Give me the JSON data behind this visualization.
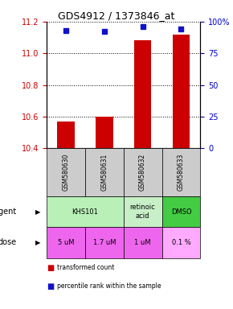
{
  "title": "GDS4912 / 1373846_at",
  "samples": [
    "GSM580630",
    "GSM580631",
    "GSM580632",
    "GSM580633"
  ],
  "bar_values": [
    10.57,
    10.6,
    11.08,
    11.12
  ],
  "percentile_values": [
    93,
    92,
    96,
    94
  ],
  "ylim_left": [
    10.4,
    11.2
  ],
  "ylim_right": [
    0,
    100
  ],
  "yticks_left": [
    10.4,
    10.6,
    10.8,
    11.0,
    11.2
  ],
  "yticks_right": [
    0,
    25,
    50,
    75,
    100
  ],
  "ytick_labels_right": [
    "0",
    "25",
    "50",
    "75",
    "100%"
  ],
  "bar_color": "#cc0000",
  "dot_color": "#1111cc",
  "agent_groups": [
    {
      "cols": [
        0,
        1
      ],
      "label": "KHS101",
      "color": "#b8f0b8"
    },
    {
      "cols": [
        2
      ],
      "label": "retinoic\nacid",
      "color": "#c8f0c8"
    },
    {
      "cols": [
        3
      ],
      "label": "DMSO",
      "color": "#44cc44"
    }
  ],
  "dose_labels": [
    "5 uM",
    "1.7 uM",
    "1 uM",
    "0.1 %"
  ],
  "dose_colors": [
    "#ee66ee",
    "#ee66ee",
    "#ee66ee",
    "#ffaaff"
  ],
  "sample_bg_color": "#cccccc",
  "left_label_color": "#cc0000",
  "right_label_color": "#0000cc"
}
